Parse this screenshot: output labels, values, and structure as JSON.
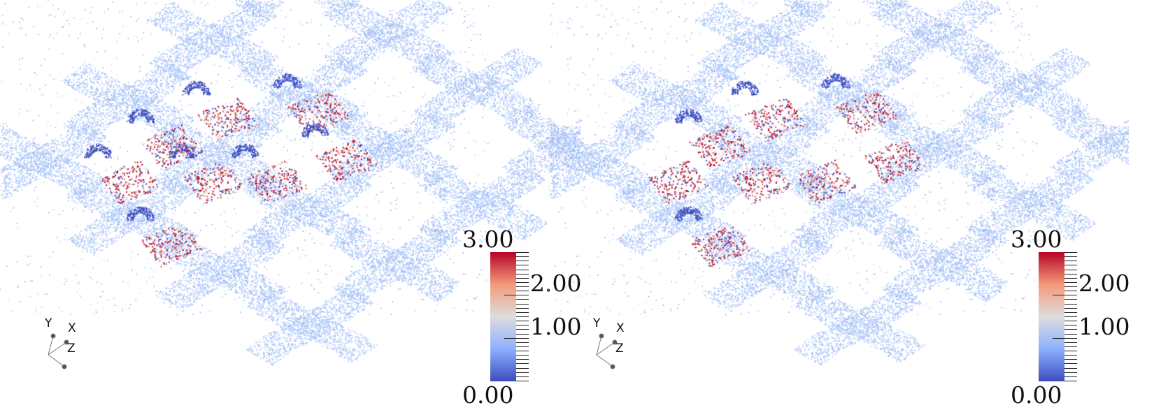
{
  "panels": [
    {
      "id": "left",
      "colorbar": {
        "max_label": "3.00",
        "mid_label": "2.00",
        "low_label": "1.00",
        "min_label": "0.00"
      },
      "axes": {
        "x": "X",
        "y": "Y",
        "z": "Z"
      }
    },
    {
      "id": "right",
      "colorbar": {
        "max_label": "3.00",
        "mid_label": "2.00",
        "low_label": "1.00",
        "min_label": "0.00"
      },
      "axes": {
        "x": "X",
        "y": "Y",
        "z": "Z"
      }
    }
  ],
  "colorbar_range": [
    0,
    3
  ],
  "colormap": [
    "#3b4cc0",
    "#8db0fe",
    "#dddddd",
    "#f49a7b",
    "#b40426"
  ],
  "point_base_color": "#a9c4f7"
}
